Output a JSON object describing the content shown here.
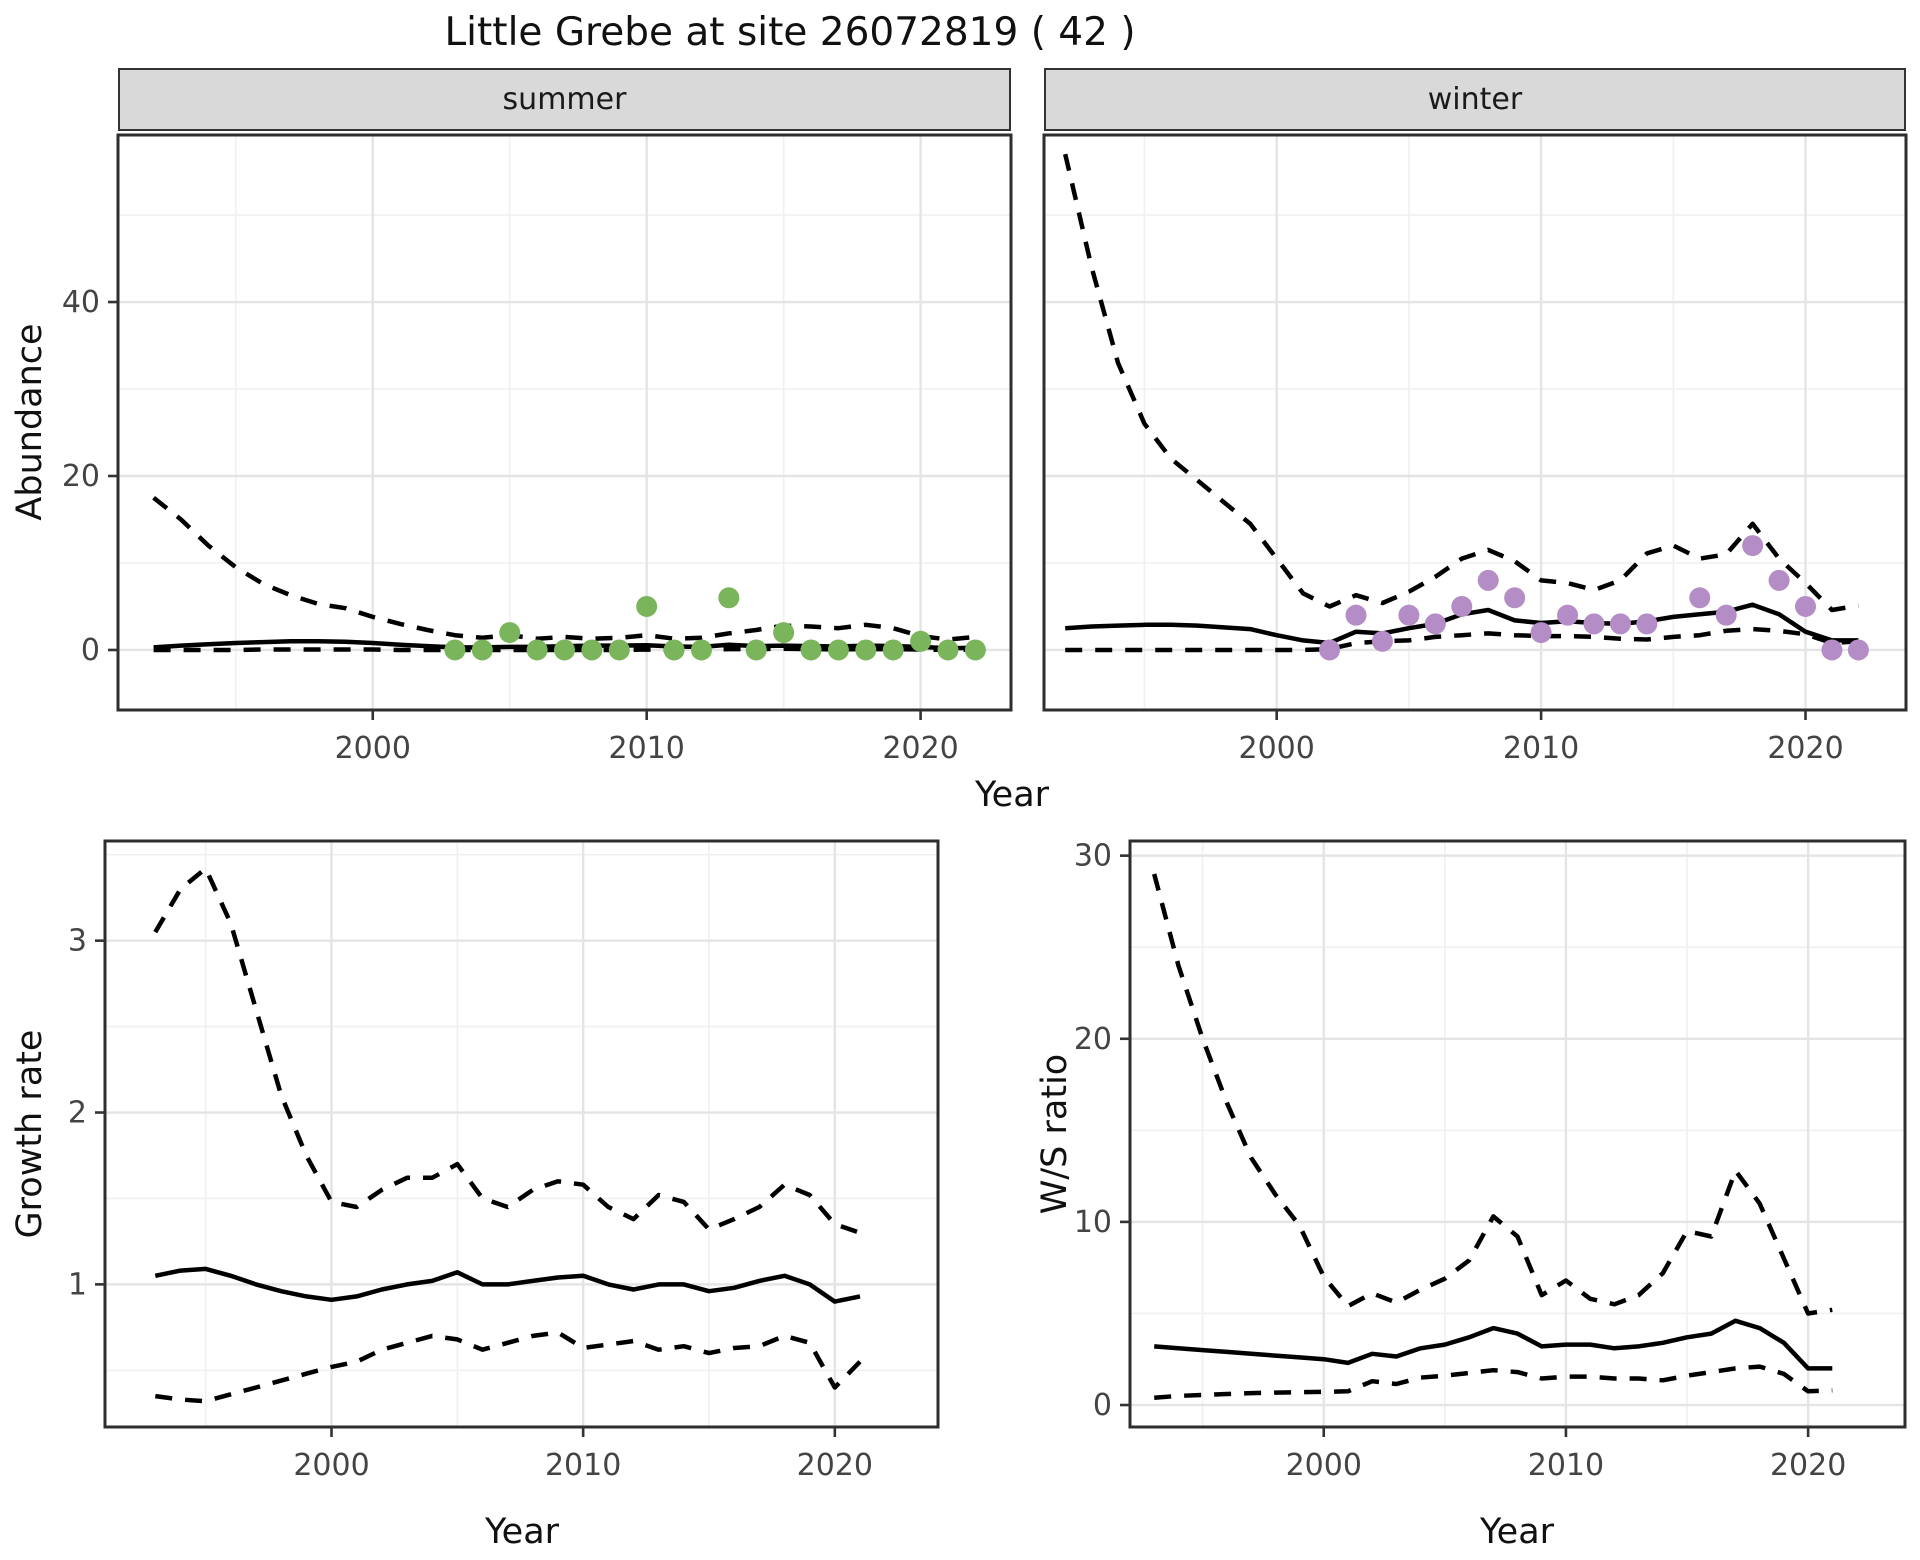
{
  "title": "Little Grebe at site 26072819 ( 42 )",
  "facets": [
    "summer",
    "winter"
  ],
  "axes": {
    "abundance": "Abundance",
    "year": "Year",
    "growth": "Growth rate",
    "ws": "W/S ratio"
  },
  "colors": {
    "summer_point": "#7ab55c",
    "winter_point": "#b48cc6",
    "line": "#000000",
    "strip_bg": "#d9d9d9",
    "grid_major": "#e4e4e4",
    "grid_minor": "#f0f0f0",
    "panel_border": "#2e2e2e",
    "tick_text": "#444444"
  },
  "chart_data": [
    {
      "name": "abundance-summer",
      "type": "line",
      "facet": "summer",
      "xlabel": "Year",
      "ylabel": "Abundance",
      "xlim": [
        1990.7,
        2023.3
      ],
      "ylim": [
        -6.9,
        59.2
      ],
      "xticks": [
        2000,
        2010,
        2020
      ],
      "xticks_minor": [
        1995,
        2005,
        2015
      ],
      "yticks": [
        0,
        20,
        40
      ],
      "yticks_minor": [
        10,
        30,
        50
      ],
      "series": [
        {
          "name": "ci_upper",
          "style": "dashed",
          "x": [
            1992,
            1993,
            1994,
            1995,
            1996,
            1997,
            1998,
            1999,
            2000,
            2001,
            2002,
            2003,
            2004,
            2005,
            2006,
            2007,
            2008,
            2009,
            2010,
            2011,
            2012,
            2013,
            2014,
            2015,
            2016,
            2017,
            2018,
            2019,
            2020,
            2021,
            2022
          ],
          "y": [
            17.5,
            15,
            12,
            9.5,
            7.6,
            6.3,
            5.3,
            4.8,
            3.8,
            3,
            2.3,
            1.7,
            1.4,
            1.7,
            1.3,
            1.5,
            1.3,
            1.4,
            1.7,
            1.3,
            1.4,
            1.9,
            2.3,
            2.8,
            2.7,
            2.5,
            2.9,
            2.5,
            1.6,
            1.2,
            1.5
          ]
        },
        {
          "name": "mean",
          "style": "solid",
          "x": [
            1992,
            1993,
            1994,
            1995,
            1996,
            1997,
            1998,
            1999,
            2000,
            2001,
            2002,
            2003,
            2004,
            2005,
            2006,
            2007,
            2008,
            2009,
            2010,
            2011,
            2012,
            2013,
            2014,
            2015,
            2016,
            2017,
            2018,
            2019,
            2020,
            2021,
            2022
          ],
          "y": [
            0.3,
            0.5,
            0.65,
            0.8,
            0.9,
            1,
            1,
            0.95,
            0.8,
            0.6,
            0.45,
            0.3,
            0.3,
            0.35,
            0.35,
            0.45,
            0.5,
            0.5,
            0.55,
            0.4,
            0.35,
            0.6,
            0.45,
            0.5,
            0.45,
            0.4,
            0.5,
            0.45,
            0.35,
            0.2,
            0.25
          ]
        },
        {
          "name": "ci_lower",
          "style": "dashed",
          "x": [
            1992,
            1993,
            1994,
            1995,
            1996,
            1997,
            1998,
            1999,
            2000,
            2001,
            2002,
            2003,
            2004,
            2005,
            2006,
            2007,
            2008,
            2009,
            2010,
            2011,
            2012,
            2013,
            2014,
            2015,
            2016,
            2017,
            2018,
            2019,
            2020,
            2021,
            2022
          ],
          "y": [
            0,
            0,
            0,
            0,
            0.05,
            0.05,
            0.05,
            0.05,
            0.05,
            0,
            0,
            0,
            0,
            0,
            0,
            0,
            0,
            0,
            0.05,
            0,
            0,
            0.1,
            0.1,
            0.15,
            0.1,
            0.05,
            0.1,
            0.1,
            0.05,
            0,
            0.05
          ]
        },
        {
          "name": "observations",
          "style": "points",
          "color_key": "summer_point",
          "x": [
            2003,
            2004,
            2005,
            2006,
            2007,
            2008,
            2009,
            2010,
            2011,
            2012,
            2013,
            2014,
            2015,
            2016,
            2017,
            2018,
            2019,
            2020,
            2021,
            2022
          ],
          "y": [
            0,
            0,
            2,
            0,
            0,
            0,
            0,
            5,
            0,
            0,
            6,
            0,
            2,
            0,
            0,
            0,
            0,
            1,
            0,
            0
          ]
        }
      ]
    },
    {
      "name": "abundance-winter",
      "type": "line",
      "facet": "winter",
      "xlabel": "Year",
      "ylabel": "Abundance",
      "xlim": [
        1991.2,
        2023.8
      ],
      "ylim": [
        -6.9,
        59.2
      ],
      "xticks": [
        2000,
        2010,
        2020
      ],
      "xticks_minor": [
        1995,
        2005,
        2015
      ],
      "yticks": [
        0,
        20,
        40
      ],
      "yticks_minor": [
        10,
        30,
        50
      ],
      "hide_ytick_labels": true,
      "series": [
        {
          "name": "ci_upper",
          "style": "dashed",
          "x": [
            1992,
            1993,
            1994,
            1995,
            1996,
            1997,
            1998,
            1999,
            2000,
            2001,
            2002,
            2003,
            2004,
            2005,
            2006,
            2007,
            2008,
            2009,
            2010,
            2011,
            2012,
            2013,
            2014,
            2015,
            2016,
            2017,
            2018,
            2019,
            2020,
            2021,
            2022
          ],
          "y": [
            57,
            44,
            33,
            26,
            22,
            19.5,
            17,
            14.5,
            10.5,
            6.5,
            5,
            6.3,
            5.4,
            6.7,
            8.4,
            10.5,
            11.5,
            10.2,
            8,
            7.7,
            6.9,
            8,
            11.1,
            12,
            10.5,
            11,
            14.5,
            10.5,
            7.7,
            4.6,
            5.1
          ]
        },
        {
          "name": "mean",
          "style": "solid",
          "x": [
            1992,
            1993,
            1994,
            1995,
            1996,
            1997,
            1998,
            1999,
            2000,
            2001,
            2002,
            2003,
            2004,
            2005,
            2006,
            2007,
            2008,
            2009,
            2010,
            2011,
            2012,
            2013,
            2014,
            2015,
            2016,
            2017,
            2018,
            2019,
            2020,
            2021,
            2022
          ],
          "y": [
            2.5,
            2.7,
            2.8,
            2.9,
            2.9,
            2.8,
            2.6,
            2.4,
            1.7,
            1.1,
            0.8,
            2.1,
            1.9,
            2.5,
            3,
            4.1,
            4.6,
            3.4,
            3.1,
            3.3,
            3.1,
            3,
            3.3,
            3.8,
            4.1,
            4.4,
            5.2,
            4.1,
            2.1,
            1.1,
            1.1
          ]
        },
        {
          "name": "ci_lower",
          "style": "dashed",
          "x": [
            1992,
            1993,
            1994,
            1995,
            1996,
            1997,
            1998,
            1999,
            2000,
            2001,
            2002,
            2003,
            2004,
            2005,
            2006,
            2007,
            2008,
            2009,
            2010,
            2011,
            2012,
            2013,
            2014,
            2015,
            2016,
            2017,
            2018,
            2019,
            2020,
            2021,
            2022
          ],
          "y": [
            0,
            0,
            0,
            0,
            0,
            0,
            0,
            0,
            0,
            0,
            0.1,
            0.8,
            1,
            1.1,
            1.5,
            1.7,
            1.9,
            1.7,
            1.6,
            1.6,
            1.5,
            1.3,
            1.2,
            1.5,
            1.7,
            2.2,
            2.4,
            2.2,
            1.8,
            0.8,
            1
          ]
        },
        {
          "name": "observations",
          "style": "points",
          "color_key": "winter_point",
          "x": [
            2002,
            2003,
            2004,
            2005,
            2006,
            2007,
            2008,
            2009,
            2010,
            2011,
            2012,
            2013,
            2014,
            2016,
            2017,
            2018,
            2019,
            2020,
            2021,
            2022
          ],
          "y": [
            0,
            4,
            1,
            4,
            3,
            5,
            8,
            6,
            2,
            4,
            3,
            3,
            3,
            6,
            4,
            12,
            8,
            5,
            0,
            0
          ]
        }
      ]
    },
    {
      "name": "growth-rate",
      "type": "line",
      "xlabel": "Year",
      "ylabel": "Growth rate",
      "xlim": [
        1991,
        2024.1
      ],
      "ylim": [
        0.17,
        3.58
      ],
      "xticks": [
        2000,
        2010,
        2020
      ],
      "xticks_minor": [
        1995,
        2005,
        2015
      ],
      "yticks": [
        1,
        2,
        3
      ],
      "yticks_minor": [
        0.5,
        1.5,
        2.5,
        3.5
      ],
      "series": [
        {
          "name": "ci_upper",
          "style": "dashed",
          "x": [
            1993,
            1994,
            1995,
            1996,
            1997,
            1998,
            1999,
            2000,
            2001,
            2002,
            2003,
            2004,
            2005,
            2006,
            2007,
            2008,
            2009,
            2010,
            2011,
            2012,
            2013,
            2014,
            2015,
            2016,
            2017,
            2018,
            2019,
            2020,
            2021
          ],
          "y": [
            3.05,
            3.3,
            3.42,
            3.1,
            2.6,
            2.1,
            1.75,
            1.48,
            1.45,
            1.55,
            1.62,
            1.62,
            1.7,
            1.5,
            1.45,
            1.55,
            1.6,
            1.58,
            1.45,
            1.38,
            1.52,
            1.48,
            1.32,
            1.38,
            1.45,
            1.58,
            1.52,
            1.35,
            1.3
          ]
        },
        {
          "name": "mean",
          "style": "solid",
          "x": [
            1993,
            1994,
            1995,
            1996,
            1997,
            1998,
            1999,
            2000,
            2001,
            2002,
            2003,
            2004,
            2005,
            2006,
            2007,
            2008,
            2009,
            2010,
            2011,
            2012,
            2013,
            2014,
            2015,
            2016,
            2017,
            2018,
            2019,
            2020,
            2021
          ],
          "y": [
            1.05,
            1.08,
            1.09,
            1.05,
            1,
            0.96,
            0.93,
            0.91,
            0.93,
            0.97,
            1,
            1.02,
            1.07,
            1,
            1,
            1.02,
            1.04,
            1.05,
            1,
            0.97,
            1,
            1,
            0.96,
            0.98,
            1.02,
            1.05,
            1,
            0.9,
            0.93
          ]
        },
        {
          "name": "ci_lower",
          "style": "dashed",
          "x": [
            1993,
            1994,
            1995,
            1996,
            1997,
            1998,
            1999,
            2000,
            2001,
            2002,
            2003,
            2004,
            2005,
            2006,
            2007,
            2008,
            2009,
            2010,
            2011,
            2012,
            2013,
            2014,
            2015,
            2016,
            2017,
            2018,
            2019,
            2020,
            2021
          ],
          "y": [
            0.35,
            0.33,
            0.32,
            0.36,
            0.4,
            0.44,
            0.48,
            0.52,
            0.55,
            0.62,
            0.66,
            0.7,
            0.68,
            0.62,
            0.66,
            0.7,
            0.72,
            0.63,
            0.65,
            0.67,
            0.62,
            0.64,
            0.6,
            0.63,
            0.64,
            0.7,
            0.66,
            0.4,
            0.55
          ]
        }
      ]
    },
    {
      "name": "ws-ratio",
      "type": "line",
      "xlabel": "Year",
      "ylabel": "W/S ratio",
      "xlim": [
        1992,
        2024
      ],
      "ylim": [
        -1.2,
        30.8
      ],
      "xticks": [
        2000,
        2010,
        2020
      ],
      "xticks_minor": [
        1995,
        2005,
        2015
      ],
      "yticks": [
        0,
        10,
        20,
        30
      ],
      "yticks_minor": [
        5,
        15,
        25
      ],
      "series": [
        {
          "name": "ci_upper",
          "style": "dashed",
          "x": [
            1993,
            1994,
            1995,
            1996,
            1997,
            1998,
            1999,
            2000,
            2001,
            2002,
            2003,
            2004,
            2005,
            2006,
            2007,
            2008,
            2009,
            2010,
            2011,
            2012,
            2013,
            2014,
            2015,
            2016,
            2017,
            2018,
            2019,
            2020,
            2021
          ],
          "y": [
            29,
            24,
            20,
            16.5,
            13.5,
            11.5,
            9.8,
            7,
            5.4,
            6.1,
            5.6,
            6.3,
            6.9,
            7.9,
            10.3,
            9.2,
            6,
            6.8,
            5.8,
            5.5,
            6,
            7.2,
            9.5,
            9.2,
            12.8,
            11,
            8,
            5,
            5.2
          ]
        },
        {
          "name": "mean",
          "style": "solid",
          "x": [
            1993,
            1994,
            1995,
            1996,
            1997,
            1998,
            1999,
            2000,
            2001,
            2002,
            2003,
            2004,
            2005,
            2006,
            2007,
            2008,
            2009,
            2010,
            2011,
            2012,
            2013,
            2014,
            2015,
            2016,
            2017,
            2018,
            2019,
            2020,
            2021
          ],
          "y": [
            3.2,
            3.1,
            3,
            2.9,
            2.8,
            2.7,
            2.6,
            2.5,
            2.3,
            2.8,
            2.65,
            3.1,
            3.3,
            3.7,
            4.2,
            3.9,
            3.2,
            3.3,
            3.3,
            3.1,
            3.2,
            3.4,
            3.7,
            3.9,
            4.6,
            4.2,
            3.4,
            2,
            2
          ]
        },
        {
          "name": "ci_lower",
          "style": "dashed",
          "x": [
            1993,
            1994,
            1995,
            1996,
            1997,
            1998,
            1999,
            2000,
            2001,
            2002,
            2003,
            2004,
            2005,
            2006,
            2007,
            2008,
            2009,
            2010,
            2011,
            2012,
            2013,
            2014,
            2015,
            2016,
            2017,
            2018,
            2019,
            2020,
            2021
          ],
          "y": [
            0.4,
            0.5,
            0.55,
            0.6,
            0.65,
            0.68,
            0.7,
            0.72,
            0.75,
            1.3,
            1.15,
            1.5,
            1.6,
            1.75,
            1.9,
            1.8,
            1.45,
            1.55,
            1.55,
            1.45,
            1.45,
            1.35,
            1.6,
            1.8,
            2,
            2.1,
            1.7,
            0.75,
            0.8
          ]
        }
      ]
    }
  ]
}
